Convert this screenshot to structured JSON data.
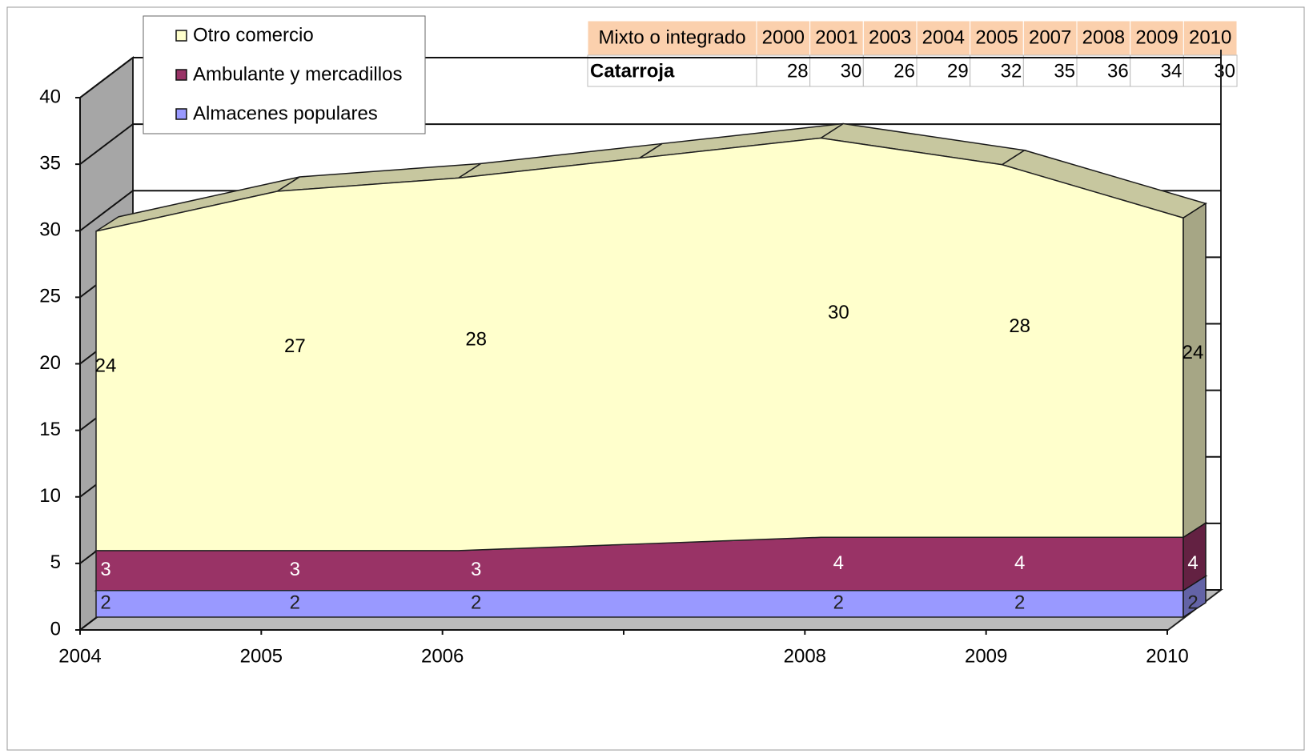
{
  "chart_data": {
    "type": "area3d_stacked",
    "categories": [
      "2004",
      "2005",
      "2006",
      null,
      "2008",
      "2009",
      "2010"
    ],
    "series": [
      {
        "name": "Almacenes populares",
        "color": "#9999ff",
        "label_color": "#222222",
        "values": [
          2,
          2,
          2,
          2,
          2,
          2,
          2
        ]
      },
      {
        "name": "Ambulante y mercadillos",
        "color": "#993366",
        "label_color": "#ffffff",
        "values": [
          3,
          3,
          3,
          3.5,
          4,
          4,
          4
        ]
      },
      {
        "name": "Otro comercio",
        "color": "#ffffcc",
        "label_color": "#000000",
        "values": [
          24,
          27,
          28,
          29,
          30,
          28,
          24
        ]
      }
    ],
    "ylim": [
      0,
      40
    ],
    "yticks": [
      0,
      5,
      10,
      15,
      20,
      25,
      30,
      35,
      40
    ],
    "grid": true
  },
  "table": {
    "header": [
      "Mixto o integrado",
      "2000",
      "2001",
      "2003",
      "2004",
      "2005",
      "2007",
      "2008",
      "2009",
      "2010"
    ],
    "rows": [
      [
        "Catarroja",
        "28",
        "30",
        "26",
        "29",
        "32",
        "35",
        "36",
        "34",
        "30"
      ]
    ]
  }
}
